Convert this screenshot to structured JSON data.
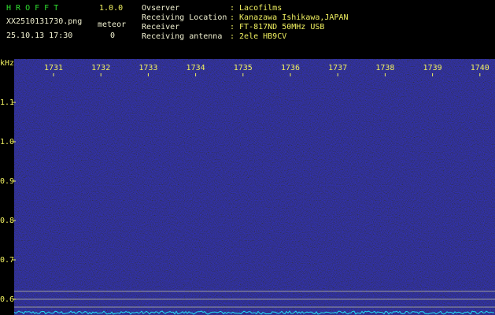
{
  "header": {
    "app_name": "H R O F F T",
    "version": "1.0.0",
    "file_name": "XX2510131730.png",
    "timestamp": "25.10.13 17:30",
    "meteor_label": "meteor",
    "meteor_count": 0
  },
  "station": [
    {
      "label": "Ovserver",
      "value": ": Lacofilms"
    },
    {
      "label": "Receiving Location",
      "value": ": Kanazawa Ishikawa,JAPAN"
    },
    {
      "label": "Receiver",
      "value": ": FT-817ND 50MHz USB"
    },
    {
      "label": "Receiving antenna",
      "value": ": 2ele HB9CV"
    }
  ],
  "x_axis": {
    "unit": "kHz",
    "ticks": [
      "1731",
      "1732",
      "1733",
      "1734",
      "1735",
      "1736",
      "1737",
      "1738",
      "1739",
      "1740"
    ]
  },
  "y_axis": {
    "ticks": [
      "1.1",
      "1.0",
      "0.9",
      "0.8",
      "0.7",
      "0.6"
    ]
  }
}
